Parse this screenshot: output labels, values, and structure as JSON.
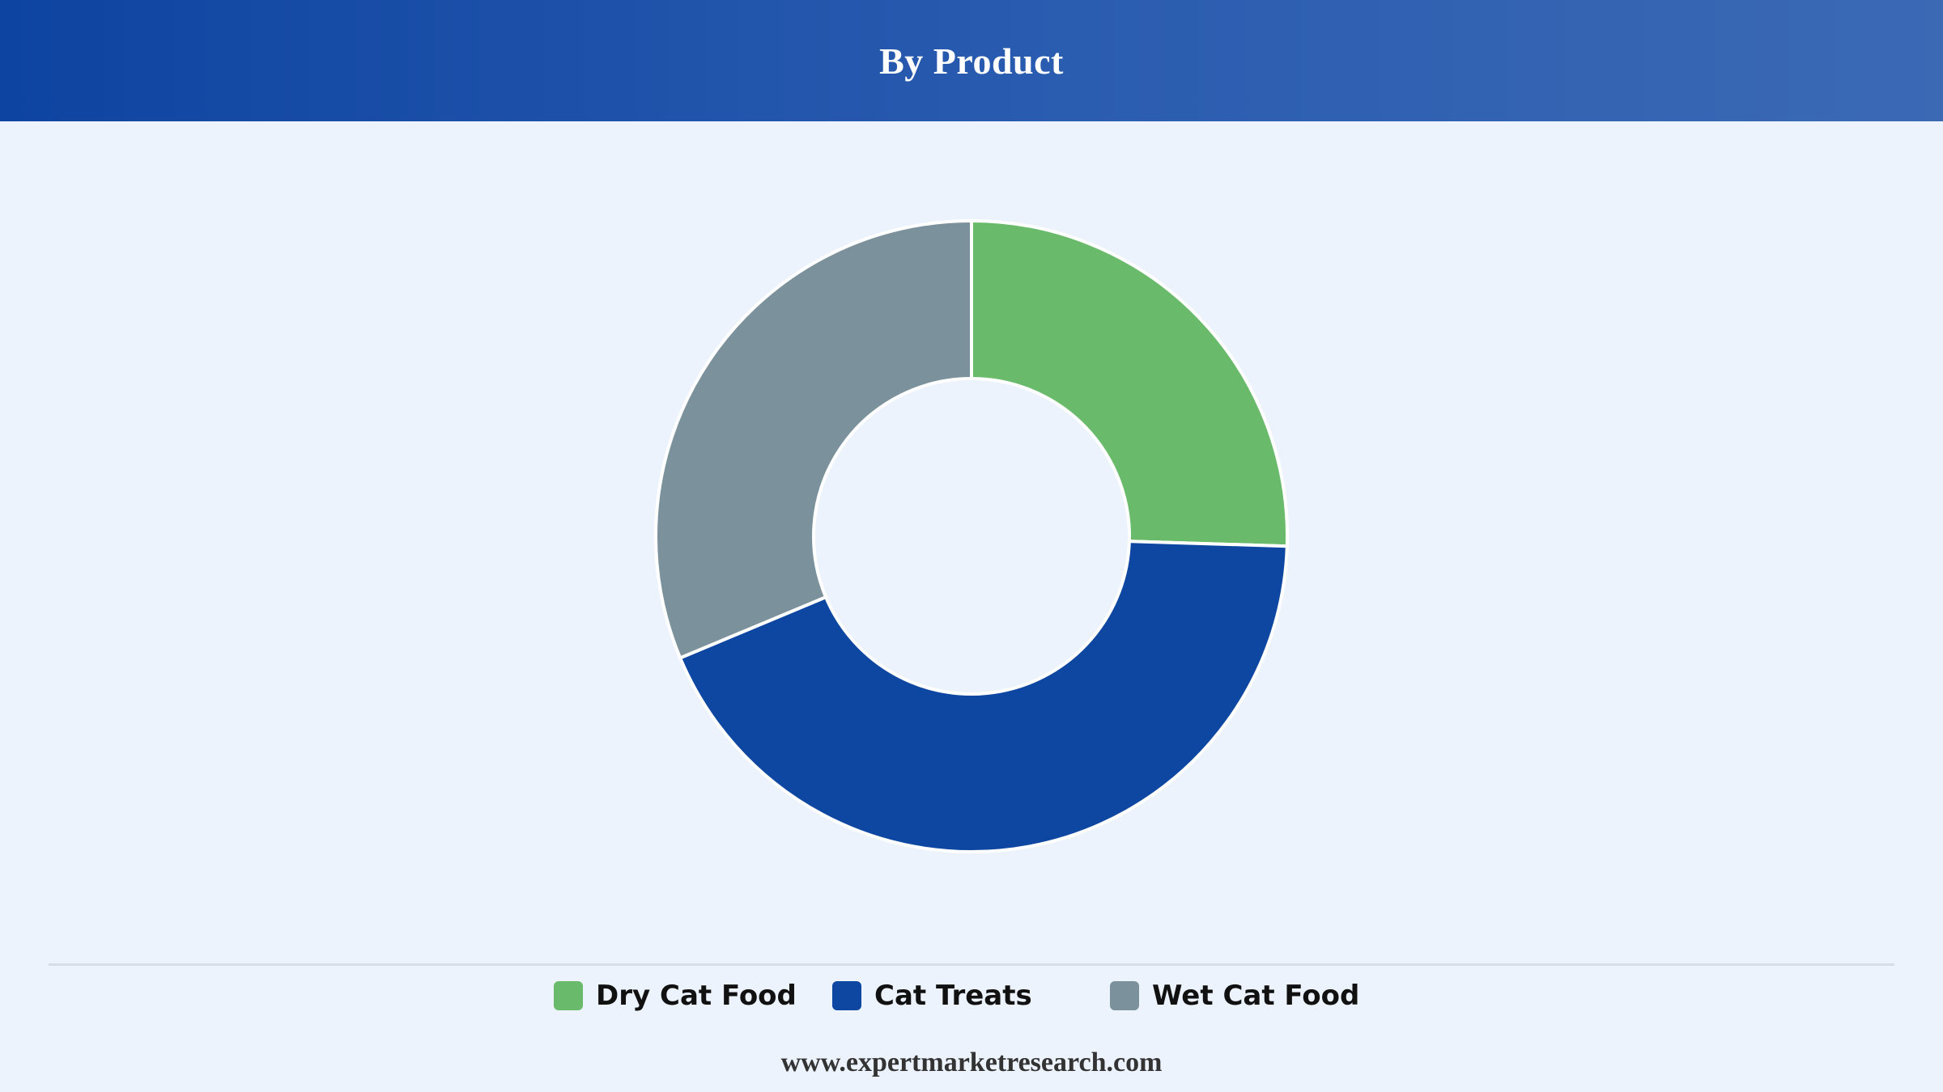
{
  "header": {
    "title": "By Product"
  },
  "chart_data": {
    "type": "pie",
    "donut": true,
    "title": "By Product",
    "categories": [
      "Dry Cat Food",
      "Cat Treats",
      "Wet Cat Food"
    ],
    "values": [
      25.5,
      43.2,
      31.3
    ],
    "unit": "%",
    "colors": [
      "#69bb6b",
      "#0d47a1",
      "#7b919b"
    ],
    "start_angle_deg": 0,
    "direction": "clockwise",
    "legend_position": "bottom"
  },
  "legend": {
    "items": [
      {
        "label": "Dry Cat Food",
        "color": "#69bb6b"
      },
      {
        "label": "Cat Treats",
        "color": "#0d47a1"
      },
      {
        "label": "Wet Cat Food",
        "color": "#7b919b"
      }
    ]
  },
  "footer": {
    "source": "www.expertmarketresearch.com"
  }
}
